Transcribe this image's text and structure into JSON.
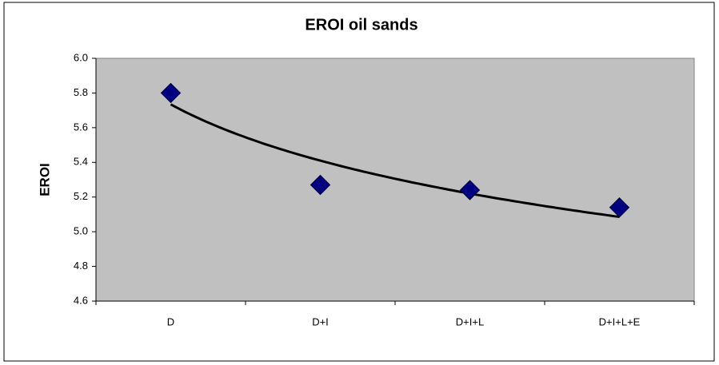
{
  "chart_data": {
    "type": "scatter-line",
    "title": "EROI oil sands",
    "y_label": "EROI",
    "categories": [
      "D",
      "D+I",
      "D+I+L",
      "D+I+L+E"
    ],
    "series": [
      {
        "color": "#000080",
        "values": [
          5.8,
          5.27,
          5.24,
          5.14
        ]
      }
    ],
    "trendline": "logarithmic",
    "trendline_color": "#000000",
    "ylim": [
      4.6,
      6.0
    ],
    "yticks": [
      {
        "value": 4.6,
        "label": "4.6"
      },
      {
        "value": 4.8,
        "label": "4.8"
      },
      {
        "value": 5.0,
        "label": "5.0"
      },
      {
        "value": 5.2,
        "label": "5.2"
      },
      {
        "value": 5.4,
        "label": "5.4"
      },
      {
        "value": 5.6,
        "label": "5.6"
      },
      {
        "value": 5.8,
        "label": "5.8"
      },
      {
        "value": 6.0,
        "label": "6.0"
      }
    ],
    "grid": false,
    "plot_background": "#c0c0c0"
  }
}
